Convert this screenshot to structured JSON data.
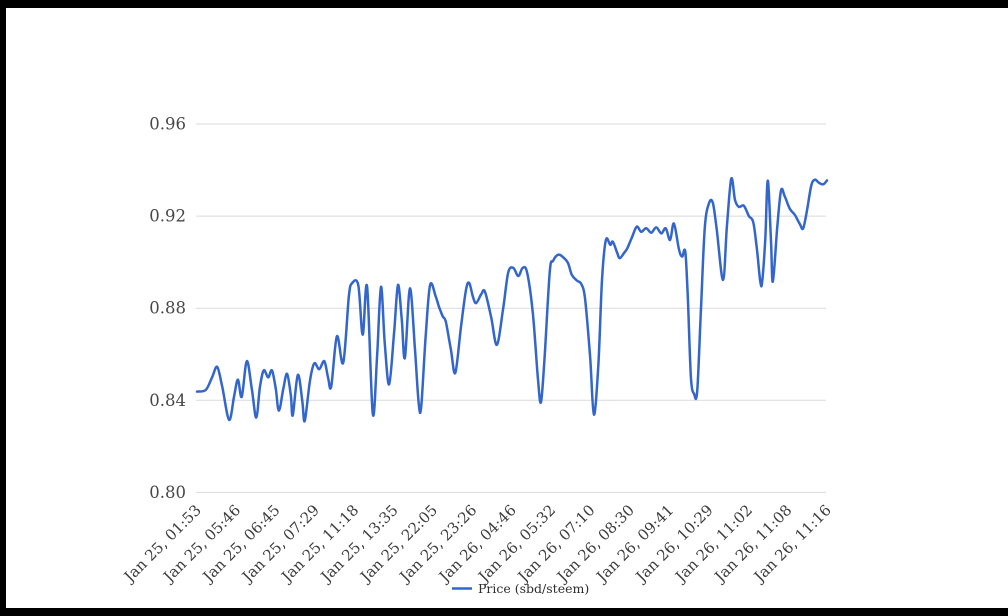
{
  "chart_data": {
    "type": "line",
    "series_name": "Price (sbd/steem)",
    "title": "",
    "xlabel": "",
    "ylabel": "",
    "ylim": [
      0.8,
      0.96
    ],
    "y_tick_labels": [
      "0.96",
      "0.92",
      "0.88",
      "0.84",
      "0.80"
    ],
    "x_tick_labels": [
      "Jan 25, 01:53",
      "Jan 25, 05:46",
      "Jan 25, 06:45",
      "Jan 25, 07:29",
      "Jan 25, 11:18",
      "Jan 25, 13:35",
      "Jan 25, 22:05",
      "Jan 25, 23:26",
      "Jan 26, 04:46",
      "Jan 26, 05:32",
      "Jan 26, 07:10",
      "Jan 26, 08:30",
      "Jan 26, 09:41",
      "Jan 26, 10:29",
      "Jan 26, 11:02",
      "Jan 26, 11:08",
      "Jan 26, 11:16"
    ],
    "grid": "horizontal-only",
    "legend_position": "bottom-center",
    "line_color": "#3366CC",
    "gridline_color": "#dadada",
    "points": [
      [
        0.0,
        0.8438
      ],
      [
        0.014,
        0.8445
      ],
      [
        0.024,
        0.85
      ],
      [
        0.032,
        0.8545
      ],
      [
        0.04,
        0.846
      ],
      [
        0.051,
        0.8315
      ],
      [
        0.059,
        0.842
      ],
      [
        0.065,
        0.849
      ],
      [
        0.071,
        0.8415
      ],
      [
        0.079,
        0.857
      ],
      [
        0.087,
        0.845
      ],
      [
        0.094,
        0.8325
      ],
      [
        0.1,
        0.846
      ],
      [
        0.106,
        0.853
      ],
      [
        0.113,
        0.85
      ],
      [
        0.119,
        0.853
      ],
      [
        0.125,
        0.845
      ],
      [
        0.13,
        0.8355
      ],
      [
        0.137,
        0.845
      ],
      [
        0.143,
        0.8515
      ],
      [
        0.149,
        0.842
      ],
      [
        0.152,
        0.8335
      ],
      [
        0.16,
        0.851
      ],
      [
        0.167,
        0.84
      ],
      [
        0.171,
        0.831
      ],
      [
        0.179,
        0.848
      ],
      [
        0.186,
        0.856
      ],
      [
        0.194,
        0.8535
      ],
      [
        0.202,
        0.857
      ],
      [
        0.208,
        0.85
      ],
      [
        0.213,
        0.846
      ],
      [
        0.222,
        0.8678
      ],
      [
        0.232,
        0.8563
      ],
      [
        0.241,
        0.885
      ],
      [
        0.246,
        0.8908
      ],
      [
        0.256,
        0.89
      ],
      [
        0.263,
        0.8685
      ],
      [
        0.27,
        0.8893
      ],
      [
        0.279,
        0.834
      ],
      [
        0.286,
        0.86
      ],
      [
        0.292,
        0.8893
      ],
      [
        0.298,
        0.865
      ],
      [
        0.305,
        0.8469
      ],
      [
        0.313,
        0.87
      ],
      [
        0.319,
        0.8901
      ],
      [
        0.325,
        0.875
      ],
      [
        0.33,
        0.8584
      ],
      [
        0.338,
        0.8886
      ],
      [
        0.346,
        0.862
      ],
      [
        0.352,
        0.8383
      ],
      [
        0.356,
        0.8376
      ],
      [
        0.363,
        0.868
      ],
      [
        0.37,
        0.8901
      ],
      [
        0.379,
        0.885
      ],
      [
        0.384,
        0.8807
      ],
      [
        0.39,
        0.8765
      ],
      [
        0.395,
        0.874
      ],
      [
        0.403,
        0.862
      ],
      [
        0.41,
        0.8519
      ],
      [
        0.419,
        0.872
      ],
      [
        0.427,
        0.888
      ],
      [
        0.432,
        0.891
      ],
      [
        0.438,
        0.885
      ],
      [
        0.443,
        0.8822
      ],
      [
        0.451,
        0.886
      ],
      [
        0.457,
        0.8872
      ],
      [
        0.467,
        0.876
      ],
      [
        0.476,
        0.8641
      ],
      [
        0.486,
        0.88
      ],
      [
        0.494,
        0.8955
      ],
      [
        0.502,
        0.8975
      ],
      [
        0.51,
        0.894
      ],
      [
        0.517,
        0.8975
      ],
      [
        0.524,
        0.8955
      ],
      [
        0.533,
        0.878
      ],
      [
        0.541,
        0.85
      ],
      [
        0.546,
        0.8392
      ],
      [
        0.552,
        0.86
      ],
      [
        0.56,
        0.896
      ],
      [
        0.565,
        0.9005
      ],
      [
        0.573,
        0.9032
      ],
      [
        0.581,
        0.9022
      ],
      [
        0.589,
        0.8995
      ],
      [
        0.595,
        0.8945
      ],
      [
        0.603,
        0.892
      ],
      [
        0.61,
        0.8905
      ],
      [
        0.616,
        0.884
      ],
      [
        0.624,
        0.859
      ],
      [
        0.63,
        0.8338
      ],
      [
        0.637,
        0.855
      ],
      [
        0.643,
        0.893
      ],
      [
        0.649,
        0.9096
      ],
      [
        0.656,
        0.9075
      ],
      [
        0.66,
        0.9089
      ],
      [
        0.667,
        0.904
      ],
      [
        0.671,
        0.9017
      ],
      [
        0.678,
        0.904
      ],
      [
        0.683,
        0.906
      ],
      [
        0.69,
        0.9105
      ],
      [
        0.698,
        0.9154
      ],
      [
        0.705,
        0.9132
      ],
      [
        0.713,
        0.9147
      ],
      [
        0.721,
        0.9128
      ],
      [
        0.729,
        0.9151
      ],
      [
        0.737,
        0.9125
      ],
      [
        0.744,
        0.9147
      ],
      [
        0.751,
        0.9096
      ],
      [
        0.757,
        0.9168
      ],
      [
        0.765,
        0.9055
      ],
      [
        0.77,
        0.9024
      ],
      [
        0.775,
        0.9046
      ],
      [
        0.779,
        0.885
      ],
      [
        0.784,
        0.85
      ],
      [
        0.789,
        0.8428
      ],
      [
        0.794,
        0.844
      ],
      [
        0.8,
        0.88
      ],
      [
        0.806,
        0.915
      ],
      [
        0.813,
        0.9258
      ],
      [
        0.819,
        0.9255
      ],
      [
        0.825,
        0.914
      ],
      [
        0.835,
        0.8923
      ],
      [
        0.841,
        0.915
      ],
      [
        0.848,
        0.9362
      ],
      [
        0.854,
        0.927
      ],
      [
        0.86,
        0.924
      ],
      [
        0.868,
        0.9245
      ],
      [
        0.876,
        0.92
      ],
      [
        0.883,
        0.9172
      ],
      [
        0.889,
        0.905
      ],
      [
        0.894,
        0.8918
      ],
      [
        0.897,
        0.8913
      ],
      [
        0.902,
        0.91
      ],
      [
        0.906,
        0.9354
      ],
      [
        0.911,
        0.91
      ],
      [
        0.914,
        0.8915
      ],
      [
        0.921,
        0.915
      ],
      [
        0.927,
        0.9311
      ],
      [
        0.933,
        0.9285
      ],
      [
        0.941,
        0.9232
      ],
      [
        0.949,
        0.9205
      ],
      [
        0.957,
        0.9165
      ],
      [
        0.962,
        0.9146
      ],
      [
        0.968,
        0.922
      ],
      [
        0.975,
        0.9333
      ],
      [
        0.981,
        0.9358
      ],
      [
        0.987,
        0.9345
      ],
      [
        0.994,
        0.9338
      ],
      [
        1.0,
        0.9355
      ]
    ]
  },
  "legend": {
    "label": "Price (sbd/steem)"
  }
}
